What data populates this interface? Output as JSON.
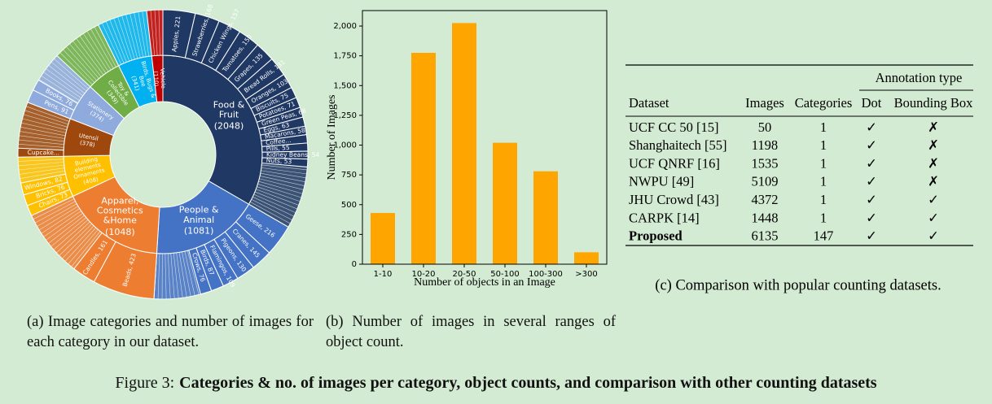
{
  "chart_data": [
    {
      "type": "sunburst",
      "categories": [
        {
          "name": "Food & Fruit",
          "value": 2048,
          "value_label": "(2048)",
          "color": "#203864",
          "children": [
            {
              "label": "Apples, 221",
              "value": 221
            },
            {
              "label": "Strawberries, 168",
              "value": 168
            },
            {
              "label": "Chicken Wings, 157",
              "value": 157
            },
            {
              "label": "Tomatoes, 150",
              "value": 150
            },
            {
              "label": "Grapes, 135",
              "value": 135
            },
            {
              "label": "Bread Rolls, 131",
              "value": 131
            },
            {
              "label": "Oranges, 103",
              "value": 103
            },
            {
              "label": "Biscuits, 75",
              "value": 75
            },
            {
              "label": "Potatoes, 71",
              "value": 71
            },
            {
              "label": "Green Peas, 68",
              "value": 68
            },
            {
              "label": "Eggs, 63",
              "value": 63
            },
            {
              "label": "Macarons, 58",
              "value": 58
            },
            {
              "label": "Coffee...",
              "value": 57
            },
            {
              "label": "Pills, 55",
              "value": 55
            },
            {
              "label": "Kidney Beans, 54",
              "value": 54
            },
            {
              "label": "Nuts, 53",
              "value": 53
            }
          ]
        },
        {
          "name": "People & Animal",
          "value": 1081,
          "value_label": "(1081)",
          "color": "#4472c4",
          "children": [
            {
              "label": "Geese, 216",
              "value": 216
            },
            {
              "label": "Cranes, 145",
              "value": 145
            },
            {
              "label": "Pigeons, 130",
              "value": 130
            },
            {
              "label": "Flamingos, 109",
              "value": 109
            },
            {
              "label": "Birds, 87",
              "value": 87
            },
            {
              "label": "Crows, 76",
              "value": 76
            }
          ]
        },
        {
          "name": "Apparel, Cosmetics &Home",
          "value": 1048,
          "value_label": "(1048)",
          "color": "#ed7d31",
          "children": [
            {
              "label": "Beads, 423",
              "value": 423
            },
            {
              "label": "Candles, 161",
              "value": 161
            }
          ]
        },
        {
          "name": "Building elements Ornaments",
          "value": 408,
          "value_label": "(408)",
          "color": "#ffc000",
          "children": [
            {
              "label": "Chairs, 73",
              "value": 73
            },
            {
              "label": "Bricks, 76",
              "value": 76
            },
            {
              "label": "Windows, 82",
              "value": 82
            }
          ]
        },
        {
          "name": "Utensil",
          "value": 378,
          "value_label": "(378)",
          "color": "#9e480e",
          "children": [
            {
              "label": "Cupcake...",
              "value": 60
            }
          ]
        },
        {
          "name": "Stationery",
          "value": 374,
          "value_label": "(374)",
          "color": "#8faadc",
          "children": [
            {
              "label": "Pens, 91",
              "value": 91
            },
            {
              "label": "Books, 76",
              "value": 76
            }
          ]
        },
        {
          "name": "Toy & Collectible",
          "value": 349,
          "value_label": "(349)",
          "color": "#70ad47",
          "children": []
        },
        {
          "name": "Birds, Bugs & Bee",
          "value": 341,
          "value_label": "(341)",
          "color": "#00b0f0",
          "children": []
        },
        {
          "name": "Vehicle",
          "value": 110,
          "value_label": "(110)",
          "color": "#c00000",
          "children": []
        }
      ]
    },
    {
      "type": "bar",
      "categories": [
        "1-10",
        "10-20",
        "20-50",
        "50-100",
        "100-300",
        ">300"
      ],
      "values": [
        430,
        1775,
        2025,
        1020,
        780,
        100
      ],
      "color": "#ffa500",
      "xlabel": "Number of objects in an Image",
      "ylabel": "Number of Images",
      "ylim": [
        0,
        2130
      ],
      "yticks": [
        0,
        250,
        500,
        750,
        {
          "value": 1000,
          "label": "1,000"
        },
        {
          "value": 1250,
          "label": "1,250"
        },
        {
          "value": 1500,
          "label": "1,500"
        },
        {
          "value": 1750,
          "label": "1,750"
        },
        {
          "value": 2000,
          "label": "2,000"
        }
      ],
      "grid": false
    }
  ],
  "table": {
    "group_header": "Annotation type",
    "columns": [
      "Dataset",
      "Images",
      "Categories",
      "Dot",
      "Bounding Box"
    ],
    "rows": [
      [
        "UCF CC 50 [15]",
        50,
        1,
        "✓",
        "✗"
      ],
      [
        "Shanghaitech [55]",
        1198,
        1,
        "✓",
        "✗"
      ],
      [
        "UCF QNRF [16]",
        1535,
        1,
        "✓",
        "✗"
      ],
      [
        "NWPU [49]",
        5109,
        1,
        "✓",
        "✗"
      ],
      [
        "JHU Crowd [43]",
        4372,
        1,
        "✓",
        "✓"
      ],
      [
        "CARPK [14]",
        1448,
        1,
        "✓",
        "✓"
      ],
      [
        "Proposed",
        6135,
        147,
        "✓",
        "✓"
      ]
    ]
  },
  "captions": [
    "(a) Image categories and number of images for each category in our dataset.",
    "(b) Number of images in several ranges of object count.",
    "(c) Comparison with popular counting datasets."
  ],
  "figure_caption": {
    "label": "Figure 3:",
    "text": "Categories & no. of images per category, object counts, and comparison with other counting datasets"
  }
}
